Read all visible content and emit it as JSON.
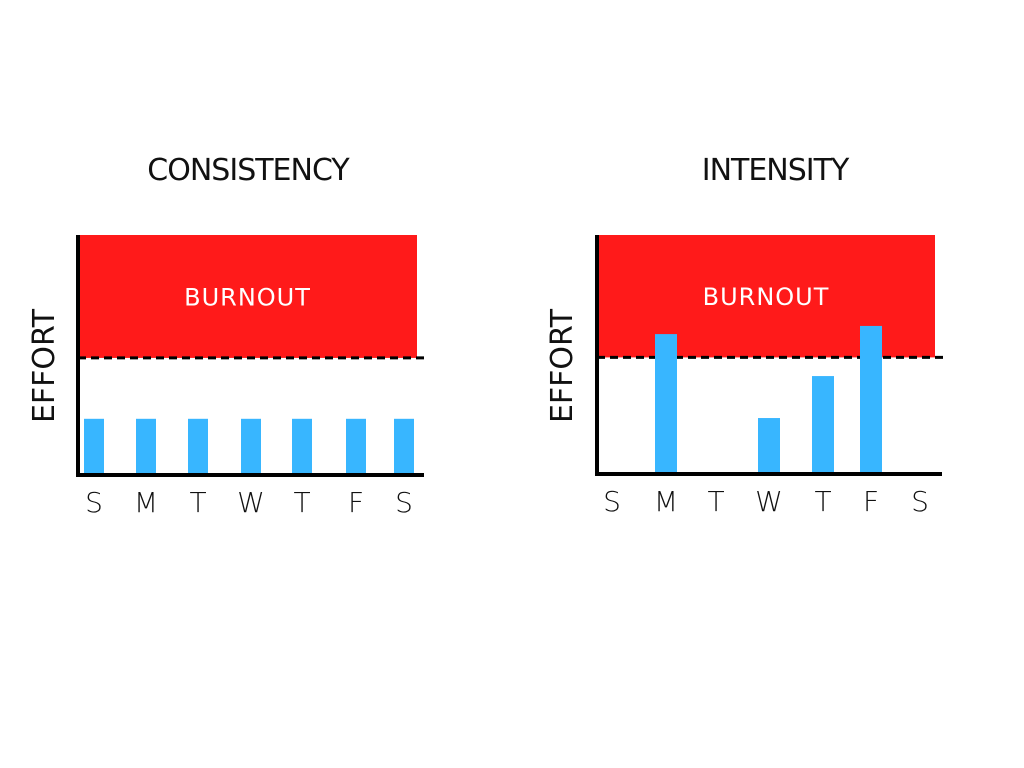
{
  "colors": {
    "burnout_zone": "#ff1a1a",
    "bar": "#38b6ff",
    "axis": "#000000",
    "text": "#111111"
  },
  "chart_data": [
    {
      "type": "bar",
      "title": "CONSISTENCY",
      "ylabel": "EFFORT",
      "xlabel": "",
      "categories": [
        "S",
        "M",
        "T",
        "W",
        "T",
        "F",
        "S"
      ],
      "values": [
        48,
        48,
        48,
        48,
        48,
        48,
        48
      ],
      "ylim": [
        0,
        205
      ],
      "threshold": 100,
      "zone_label": "BURNOUT",
      "grid": false
    },
    {
      "type": "bar",
      "title": "INTENSITY",
      "ylabel": "EFFORT",
      "xlabel": "",
      "categories": [
        "S",
        "M",
        "T",
        "W",
        "T",
        "F",
        "S"
      ],
      "values": [
        0,
        120,
        0,
        48,
        84,
        127,
        0
      ],
      "ylim": [
        0,
        205
      ],
      "threshold": 100,
      "zone_label": "BURNOUT",
      "grid": false
    }
  ]
}
